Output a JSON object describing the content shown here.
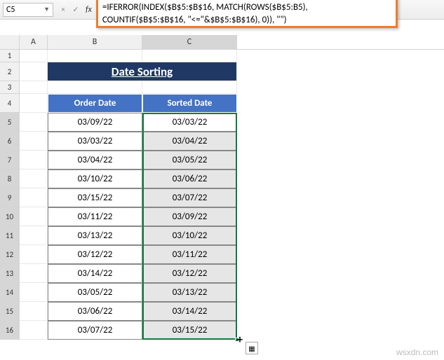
{
  "active_cell_ref": "C5",
  "formula": "=IFERROR(INDEX($B$5:$B$16, MATCH(ROWS($B$5:B5), COUNTIF($B$5:$B$16, \"<=\"&$B$5:$B$16), 0)), \"\")",
  "columns": {
    "A": "A",
    "B": "B",
    "C": "C"
  },
  "title": "Date Sorting",
  "headers": {
    "order": "Order Date",
    "sorted": "Sorted Date"
  },
  "rows": [
    {
      "n": 5,
      "order": "03/09/22",
      "sorted": "03/03/22"
    },
    {
      "n": 6,
      "order": "03/03/22",
      "sorted": "03/04/22"
    },
    {
      "n": 7,
      "order": "03/04/22",
      "sorted": "03/05/22"
    },
    {
      "n": 8,
      "order": "03/10/22",
      "sorted": "03/06/22"
    },
    {
      "n": 9,
      "order": "03/15/22",
      "sorted": "03/07/22"
    },
    {
      "n": 10,
      "order": "03/11/22",
      "sorted": "03/09/22"
    },
    {
      "n": 11,
      "order": "03/13/22",
      "sorted": "03/10/22"
    },
    {
      "n": 12,
      "order": "03/12/22",
      "sorted": "03/11/22"
    },
    {
      "n": 13,
      "order": "03/14/22",
      "sorted": "03/12/22"
    },
    {
      "n": 14,
      "order": "03/05/22",
      "sorted": "03/13/22"
    },
    {
      "n": 15,
      "order": "03/06/22",
      "sorted": "03/14/22"
    },
    {
      "n": 16,
      "order": "03/07/22",
      "sorted": "03/15/22"
    }
  ],
  "colors": {
    "title_bg": "#203864",
    "header_bg": "#4472c4",
    "sorted_bg": "#e6e6e6",
    "formula_border": "#ed7d31",
    "selection_border": "#107c41"
  },
  "watermark": "wsxdn.com"
}
